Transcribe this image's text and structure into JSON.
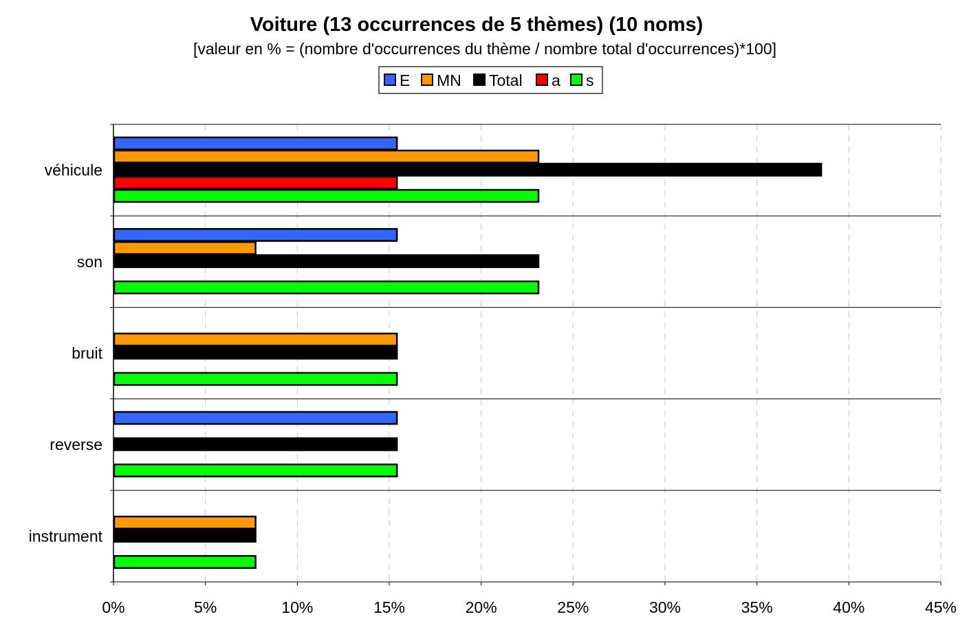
{
  "chart_data": {
    "type": "bar",
    "orientation": "horizontal",
    "title": "Voiture (13 occurrences de 5 thèmes) (10 noms)",
    "subtitle": "[valeur en % = (nombre d'occurrences du thème / nombre total d'occurrences)*100]",
    "categories": [
      "véhicule",
      "son",
      "bruit",
      "reverse",
      "instrument"
    ],
    "series": [
      {
        "name": "E",
        "color": "#3366ff",
        "values": [
          15.38,
          15.38,
          0,
          15.38,
          0
        ]
      },
      {
        "name": "MN",
        "color": "#ff9900",
        "values": [
          23.08,
          7.69,
          15.38,
          0,
          7.69
        ]
      },
      {
        "name": "Total",
        "color": "#000000",
        "values": [
          38.46,
          23.08,
          15.38,
          15.38,
          7.69
        ]
      },
      {
        "name": "a",
        "color": "#ff0000",
        "values": [
          15.38,
          0,
          0,
          0,
          0
        ]
      },
      {
        "name": "s",
        "color": "#00ff00",
        "values": [
          23.08,
          23.08,
          15.38,
          15.38,
          7.69
        ]
      }
    ],
    "xlim": [
      0,
      45
    ],
    "xticks": [
      "0%",
      "5%",
      "10%",
      "15%",
      "20%",
      "25%",
      "30%",
      "35%",
      "40%",
      "45%"
    ],
    "grid": "vertical dashed",
    "legend_position": "top-center"
  }
}
